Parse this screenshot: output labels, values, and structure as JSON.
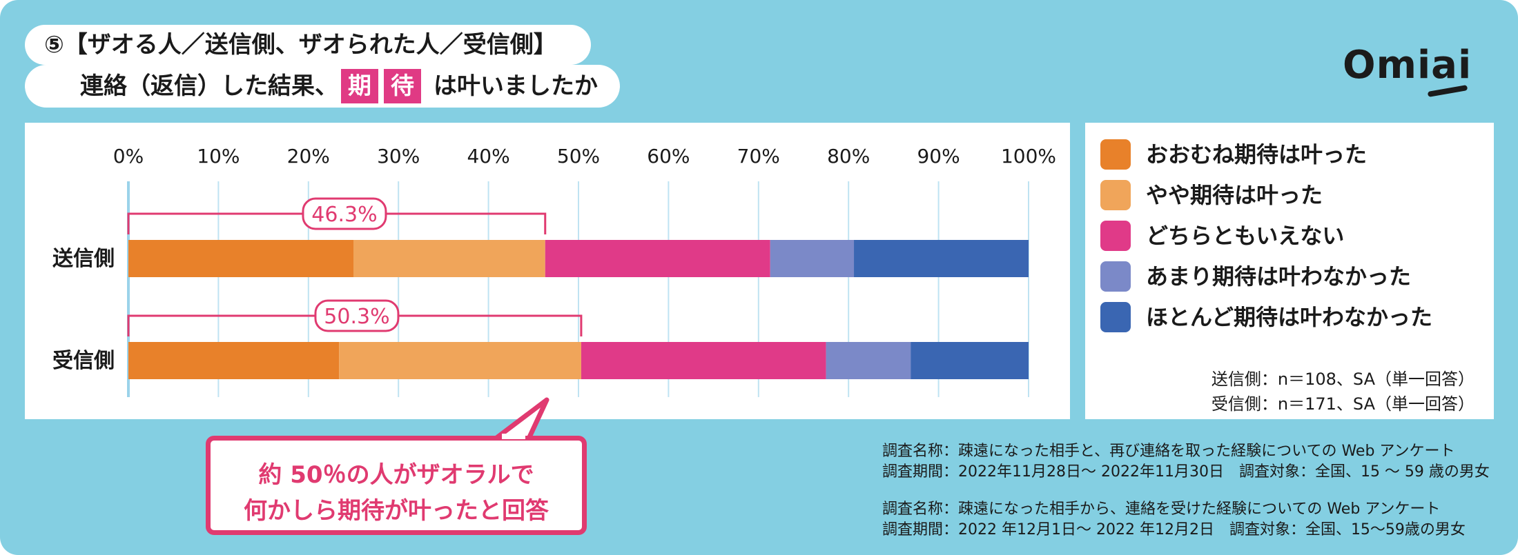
{
  "title": {
    "line1": "⑤【ザオる人／送信側、ザオられた人／受信側】",
    "line2_before": "連絡（返信）した結果、",
    "highlight1": "期",
    "highlight2": "待",
    "line2_after": "は叶いましたか"
  },
  "logo": "Omiai",
  "colors": {
    "おおむね期待は叶った": "#e8812a",
    "やや期待は叶った": "#f0a55a",
    "どちらともいえない": "#e03a88",
    "あまり期待は叶わなかった": "#7b89c8",
    "ほとんど期待は叶わなかった": "#3a66b2",
    "accent": "#e03a70",
    "background": "#84cfe2"
  },
  "chart_data": {
    "type": "bar",
    "orientation": "horizontal",
    "stacked": true,
    "categories": [
      "送信側",
      "受信側"
    ],
    "x_ticks": [
      "0%",
      "10%",
      "20%",
      "30%",
      "40%",
      "50%",
      "60%",
      "70%",
      "80%",
      "90%",
      "100%"
    ],
    "xlim": [
      0,
      100
    ],
    "grid": true,
    "legend_position": "right",
    "series": [
      {
        "name": "おおむね期待は叶った",
        "values": [
          25.0,
          23.4
        ]
      },
      {
        "name": "やや期待は叶った",
        "values": [
          21.3,
          26.9
        ]
      },
      {
        "name": "どちらともいえない",
        "values": [
          25.0,
          27.2
        ]
      },
      {
        "name": "あまり期待は叶わなかった",
        "values": [
          9.3,
          9.4
        ]
      },
      {
        "name": "ほとんど期待は叶わなかった",
        "values": [
          19.4,
          13.1
        ]
      }
    ],
    "annotations": [
      {
        "category": "送信側",
        "label": "46.3%",
        "value": 46.3
      },
      {
        "category": "受信側",
        "label": "50.3%",
        "value": 50.3
      }
    ]
  },
  "notes": {
    "sample1": "送信側：n＝108、SA（単一回答）",
    "sample2": "受信側：n＝171、SA（単一回答）"
  },
  "callout": {
    "line1": "約 50％の人がザオラルで",
    "line2": "何かしら期待が叶ったと回答"
  },
  "survey": {
    "s1_name": "調査名称：疎遠になった相手と、再び連絡を取った経験についての Web アンケート",
    "s1_period": "調査期間：2022年11月28日〜 2022年11月30日　調査対象：全国、15 〜 59 歳の男女",
    "s2_name": "調査名称：疎遠になった相手から、連絡を受けた経験についての Web アンケート",
    "s2_period": "調査期間：2022 年12月1日〜 2022 年12月2日　調査対象：全国、15〜59歳の男女"
  }
}
